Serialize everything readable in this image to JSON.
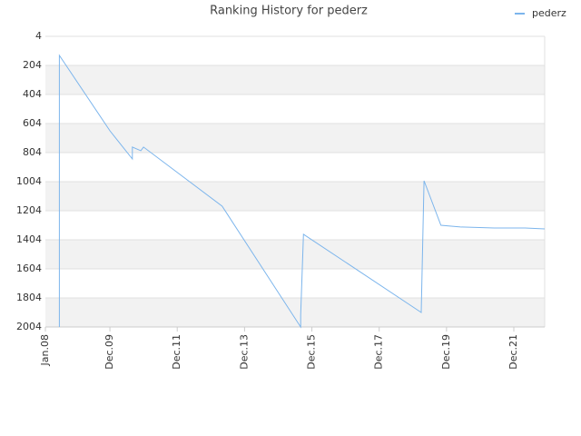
{
  "chart_data": {
    "type": "line",
    "title": "Ranking History for pederz",
    "x": [
      "2008-06",
      "2008-06",
      "2009-12",
      "2010-08",
      "2010-08",
      "2010-11",
      "2010-12",
      "2013-04",
      "2015-08",
      "2015-08",
      "2015-09",
      "2019-03",
      "2019-04",
      "2019-10",
      "2020-05",
      "2021-05",
      "2022-04",
      "2022-11"
    ],
    "series": [
      {
        "name": "pederz",
        "color": "#7cb5ec",
        "values": [
          2004,
          135,
          654,
          848,
          766,
          791,
          766,
          1173,
          2004,
          1923,
          1366,
          1904,
          998,
          1304,
          1316,
          1323,
          1323,
          1329
        ]
      }
    ],
    "xlim": [
      "2008-01",
      "2022-11"
    ],
    "xticks": [
      {
        "value": "2008-01",
        "label": "Jan.08"
      },
      {
        "value": "2009-12",
        "label": "Dec.09"
      },
      {
        "value": "2011-12",
        "label": "Dec.11"
      },
      {
        "value": "2013-12",
        "label": "Dec.13"
      },
      {
        "value": "2015-12",
        "label": "Dec.15"
      },
      {
        "value": "2017-12",
        "label": "Dec.17"
      },
      {
        "value": "2019-12",
        "label": "Dec.19"
      },
      {
        "value": "2021-12",
        "label": "Dec.21"
      }
    ],
    "ylim": [
      2004,
      4
    ],
    "yticks": [
      4,
      204,
      404,
      604,
      804,
      1004,
      1204,
      1404,
      1604,
      1804,
      2004
    ],
    "grid": true,
    "legend": "top-right"
  }
}
